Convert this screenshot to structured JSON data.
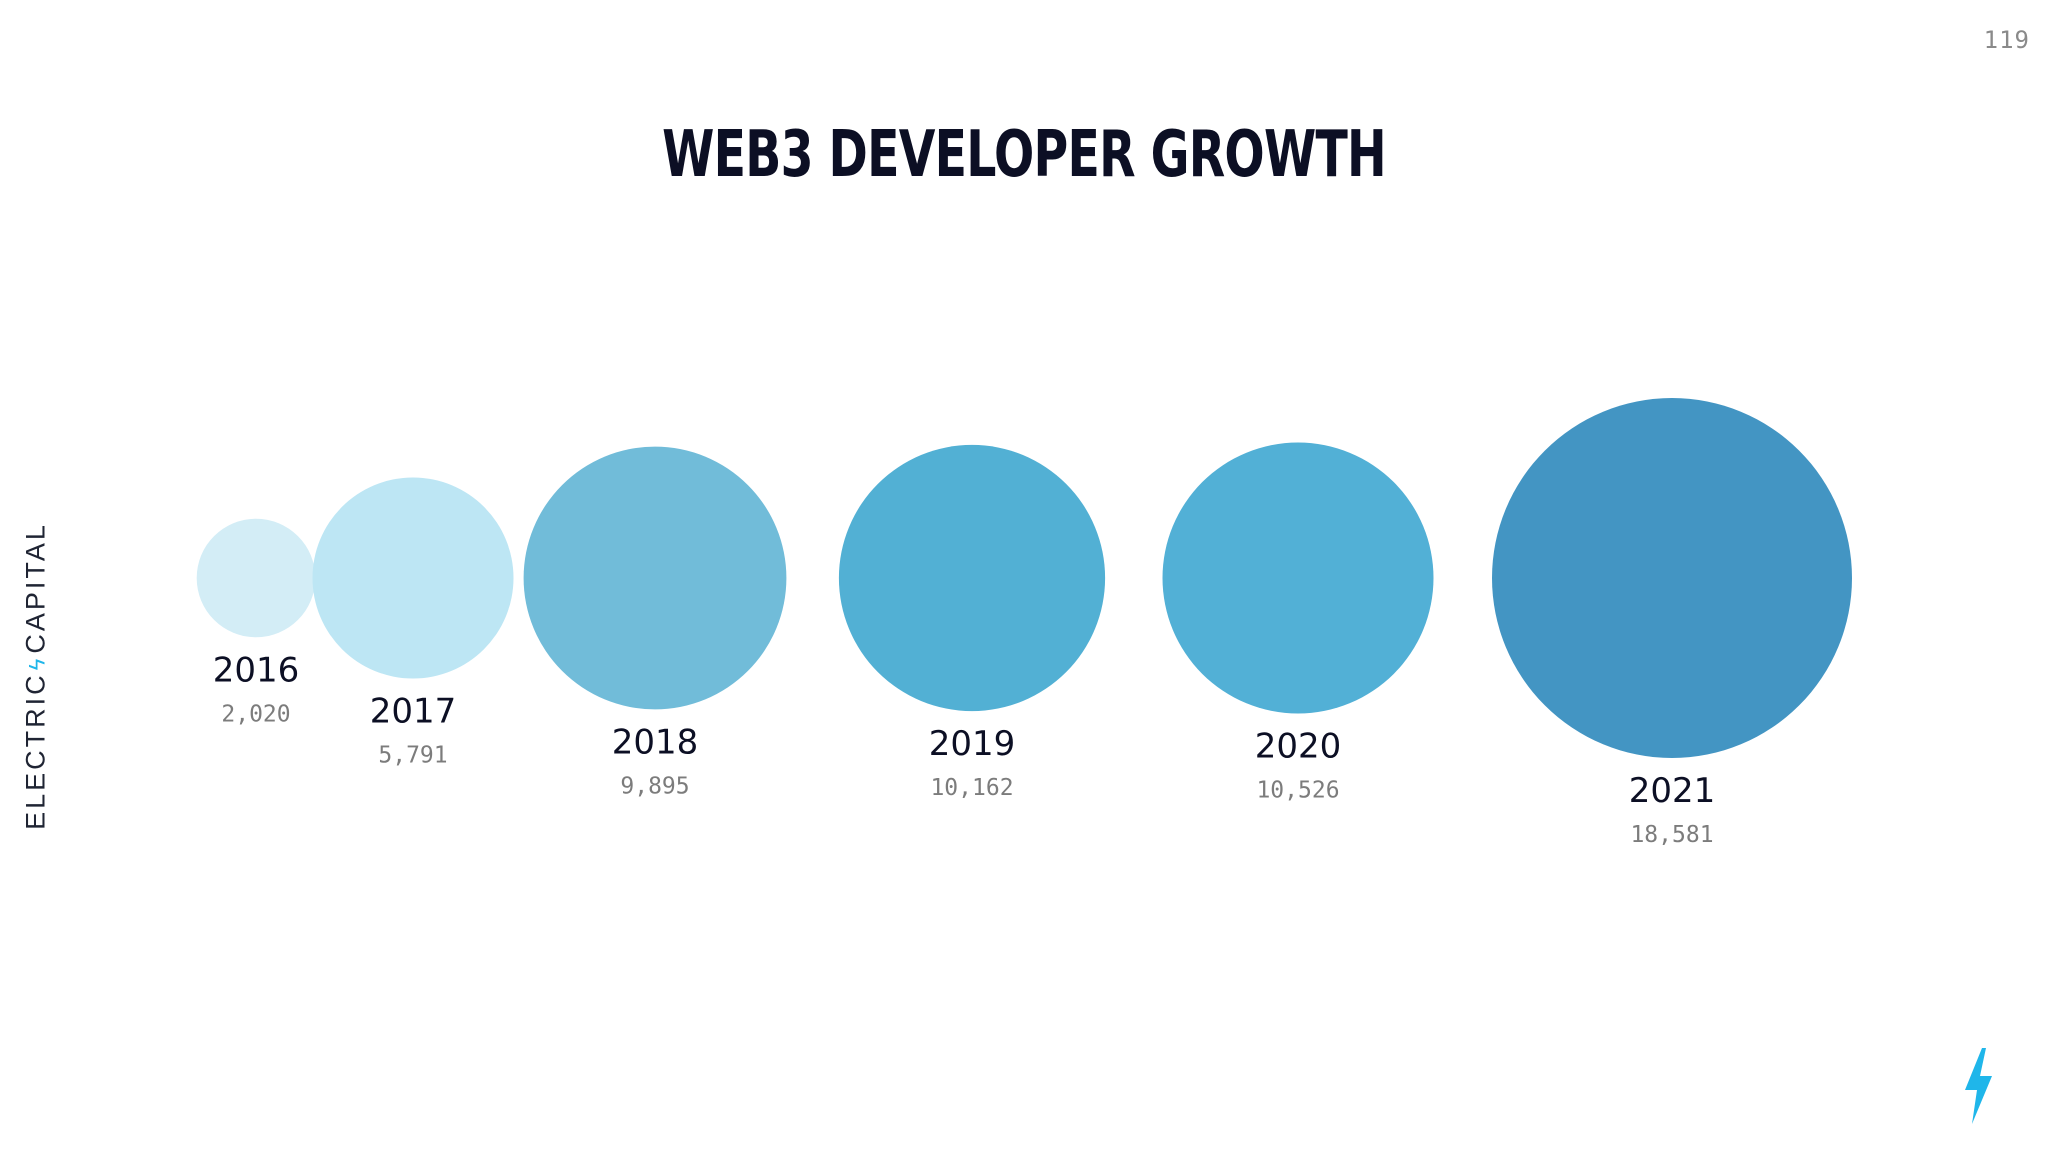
{
  "page": {
    "number": "119",
    "brand_left": "ELECTRIC",
    "brand_right": "CAPITAL"
  },
  "chart_data": {
    "type": "bubble",
    "title": "Web3 Developer Growth",
    "categories": [
      "2016",
      "2017",
      "2018",
      "2019",
      "2020",
      "2021"
    ],
    "values": [
      2020,
      5791,
      9895,
      10162,
      10526,
      18581
    ],
    "value_labels": [
      "2,020",
      "5,791",
      "9,895",
      "10,162",
      "10,526",
      "18,581"
    ],
    "colors": [
      "#d3edf6",
      "#bde6f4",
      "#71bcd9",
      "#52b0d4",
      "#52b0d6",
      "#4395c3"
    ],
    "legend": "none",
    "grid": false
  },
  "colors": {
    "title": "#0c0f24",
    "year_label": "#0c0f24",
    "value_label": "#7c7c7c",
    "accent": "#1fb6ea"
  }
}
